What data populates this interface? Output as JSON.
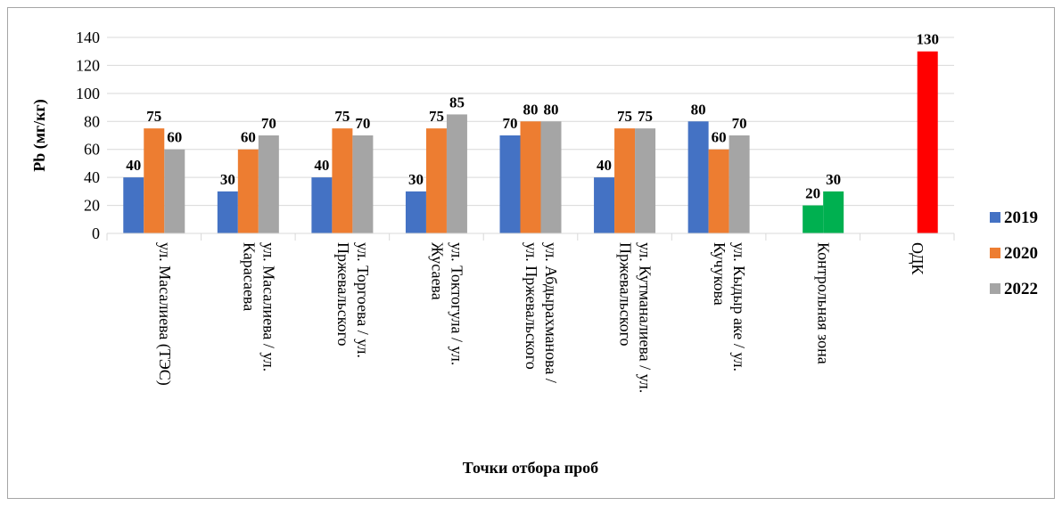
{
  "chart_data": {
    "type": "bar",
    "title": "",
    "xlabel": "Точки отбора проб",
    "ylabel": "Pb (мг/кг)",
    "ylim": [
      0,
      140
    ],
    "yticks": [
      0,
      20,
      40,
      60,
      80,
      100,
      120,
      140
    ],
    "grid": true,
    "legend": "right",
    "categories": [
      [
        "ул. Масалиева (ТЭС)"
      ],
      [
        "ул. Масалиева / ул.",
        "Карасаева"
      ],
      [
        "ул. Торгоева / ул.",
        "Пржевальского"
      ],
      [
        "ул. Токтогула / ул.",
        "Жусаева"
      ],
      [
        "ул. Абдырахманова /",
        "ул. Пржевальского"
      ],
      [
        "ул. Кутманалиева / ул.",
        "Пржевальского"
      ],
      [
        "ул. Кыдыр аке / ул.",
        "Кучукова"
      ],
      [
        "Контрольная зона"
      ],
      [
        "ОДК"
      ]
    ],
    "series": [
      {
        "name": "2019",
        "color": "#4472c4",
        "values": [
          40,
          30,
          40,
          30,
          70,
          40,
          80,
          null,
          null
        ]
      },
      {
        "name": "2020",
        "color": "#ed7d31",
        "values": [
          75,
          60,
          75,
          75,
          80,
          75,
          60,
          null,
          null
        ]
      },
      {
        "name": "2022",
        "color": "#a5a5a5",
        "values": [
          60,
          70,
          70,
          85,
          80,
          75,
          70,
          null,
          null
        ]
      }
    ],
    "special_bars": [
      {
        "category_index": 7,
        "values": [
          20,
          30
        ],
        "color": "#00b050"
      },
      {
        "category_index": 8,
        "values": [
          130
        ],
        "color": "#ff0000"
      }
    ]
  }
}
